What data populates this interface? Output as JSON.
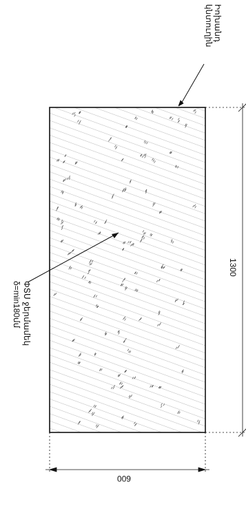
{
  "drawing": {
    "label_top_line1": "Իոխանդ",
    "label_top_line2": "կնտուղին",
    "label_left_line1": "ΦՏՍ ջերմամեկ",
    "label_left_line2": "δ=min180մմ",
    "dim_length": "1300",
    "dim_width": "600"
  },
  "colors": {
    "ink": "#111111",
    "hatch": "#777777"
  }
}
